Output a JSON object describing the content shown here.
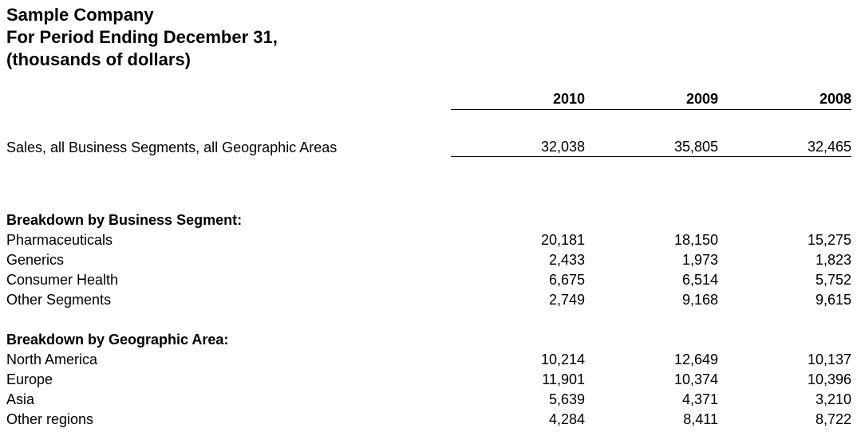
{
  "title": {
    "company": "Sample Company",
    "period": "For Period Ending December 31,",
    "units": "(thousands of dollars)"
  },
  "table": {
    "years": [
      "2010",
      "2009",
      "2008"
    ],
    "sales_row": {
      "label": "Sales, all Business Segments, all Geographic Areas",
      "values": [
        "32,038",
        "35,805",
        "32,465"
      ]
    },
    "sections": [
      {
        "heading": "Breakdown by Business Segment:",
        "rows": [
          {
            "label": "Pharmaceuticals",
            "values": [
              "20,181",
              "18,150",
              "15,275"
            ]
          },
          {
            "label": "Generics",
            "values": [
              "2,433",
              "1,973",
              "1,823"
            ]
          },
          {
            "label": "Consumer Health",
            "values": [
              "6,675",
              "6,514",
              "5,752"
            ]
          },
          {
            "label": "Other Segments",
            "values": [
              "2,749",
              "9,168",
              "9,615"
            ]
          }
        ]
      },
      {
        "heading": "Breakdown by Geographic Area:",
        "rows": [
          {
            "label": "North America",
            "values": [
              "10,214",
              "12,649",
              "10,137"
            ]
          },
          {
            "label": "Europe",
            "values": [
              "11,901",
              "10,374",
              "10,396"
            ]
          },
          {
            "label": "Asia",
            "values": [
              "5,639",
              "4,371",
              "3,210"
            ]
          },
          {
            "label": "Other regions",
            "values": [
              "4,284",
              "8,411",
              "8,722"
            ]
          }
        ]
      }
    ]
  },
  "colors": {
    "text": "#000000",
    "background": "#ffffff",
    "rule": "#000000"
  }
}
